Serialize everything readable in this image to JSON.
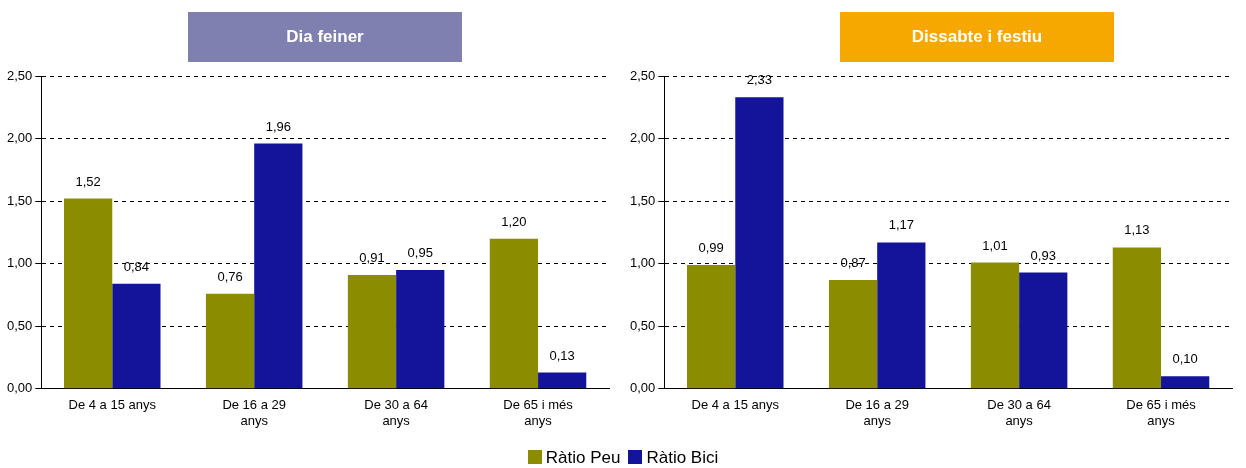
{
  "chart_data": [
    {
      "type": "bar",
      "title": "Dia feiner",
      "categories": [
        "De 4 a 15 anys",
        "De 16 a 29 anys",
        "De 30 a 64 anys",
        "De 65 i més anys"
      ],
      "series": [
        {
          "color": "#8c8c00",
          "values": [
            1.52,
            0.76,
            0.91,
            1.2
          ],
          "value_labels": [
            "1,52",
            "0,76",
            "0,91",
            "1,20"
          ]
        },
        {
          "color": "#14149a",
          "values": [
            0.84,
            1.96,
            0.95,
            0.13
          ],
          "value_labels": [
            "0,84",
            "1,96",
            "0,95",
            "0,13"
          ]
        }
      ],
      "ylim": [
        0,
        2.5
      ],
      "yticks": [
        {
          "value": 0,
          "label": "0,00"
        },
        {
          "value": 0.5,
          "label": "0,50"
        },
        {
          "value": 1,
          "label": "1,00"
        },
        {
          "value": 1.5,
          "label": "1,50"
        },
        {
          "value": 2,
          "label": "2,00"
        },
        {
          "value": 2.5,
          "label": "2,50"
        }
      ],
      "grid": "y"
    },
    {
      "type": "bar",
      "title": "Dissabte i festiu",
      "categories": [
        "De 4 a 15 anys",
        "De 16 a 29 anys",
        "De 30 a 64 anys",
        "De 65 i més anys"
      ],
      "series": [
        {
          "name": "Ràtio Peu",
          "color": "#8c8c00",
          "values": [
            0.99,
            0.87,
            1.01,
            1.13
          ],
          "value_labels": [
            "0,99",
            "0,87",
            "1,01",
            "1,13"
          ]
        },
        {
          "name": "Ràtio Bici",
          "color": "#14149a",
          "values": [
            2.33,
            1.17,
            0.93,
            0.1
          ],
          "value_labels": [
            "2,33",
            "1,17",
            "0,93",
            "0,10"
          ]
        }
      ],
      "ylim": [
        0,
        2.5
      ],
      "yticks": [
        {
          "value": 0,
          "label": "0,00"
        },
        {
          "value": 0.5,
          "label": "0,50"
        },
        {
          "value": 1,
          "label": "1,00"
        },
        {
          "value": 1.5,
          "label": "1,50"
        },
        {
          "value": 2,
          "label": "2,00"
        },
        {
          "value": 2.5,
          "label": "2,50"
        }
      ],
      "grid": "y",
      "legend": "bottom"
    }
  ]
}
